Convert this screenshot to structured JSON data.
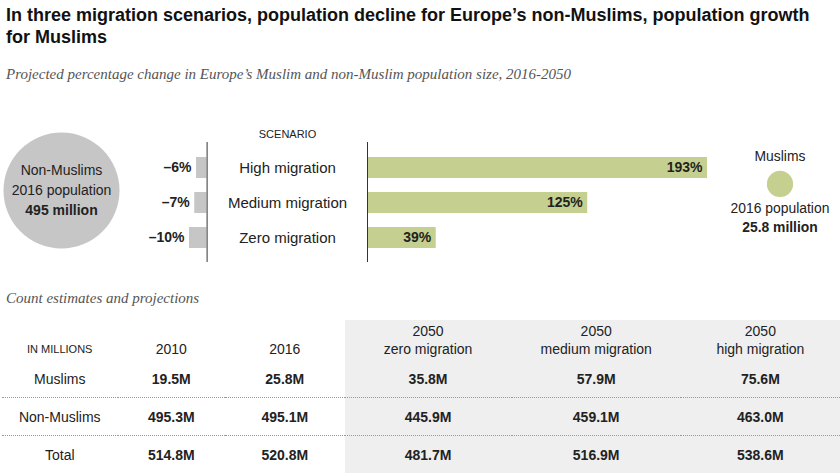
{
  "title": "In three migration scenarios, population decline for Europe’s non-Muslims, population growth for Muslims",
  "subtitle": "Projected percentage change in Europe’s Muslim and non-Muslim population size, 2016-2050",
  "chart_data": [
    {
      "type": "bar",
      "orientation": "horizontal",
      "categories": [
        "High migration",
        "Medium migration",
        "Zero migration"
      ],
      "series": [
        {
          "name": "Non-Muslims",
          "color": "#c6c6c6",
          "values": [
            -6,
            -7,
            -10
          ],
          "value_labels": [
            "–6%",
            "–7%",
            "–10%"
          ],
          "population_label": "2016 population",
          "population": 495,
          "population_value_label": "495 million"
        }
      ],
      "xlim": [
        -10,
        0
      ],
      "tick_labels": false,
      "data_labels": true
    },
    {
      "type": "bar",
      "orientation": "horizontal",
      "ylabel": "SCENARIO",
      "categories": [
        "High migration",
        "Medium migration",
        "Zero migration"
      ],
      "series": [
        {
          "name": "Muslims",
          "color": "#c5cf8f",
          "values": [
            193,
            125,
            39
          ],
          "value_labels": [
            "193%",
            "125%",
            "39%"
          ],
          "population_label": "2016 population",
          "population": 25.8,
          "population_value_label": "25.8 million"
        }
      ],
      "xlim": [
        0,
        193
      ],
      "tick_labels": false,
      "data_labels": true
    }
  ],
  "table": {
    "title": "Count estimates and projections",
    "header": [
      [
        "IN MILLIONS"
      ],
      [
        "2010"
      ],
      [
        "2016"
      ],
      [
        "2050",
        "zero migration"
      ],
      [
        "2050",
        "medium migration"
      ],
      [
        "2050",
        "high migration"
      ]
    ],
    "rows": [
      [
        "Muslims",
        "19.5M",
        "25.8M",
        "35.8M",
        "57.9M",
        "75.6M"
      ],
      [
        "Non-Muslims",
        "495.3M",
        "495.1M",
        "445.9M",
        "459.1M",
        "463.0M"
      ],
      [
        "Total",
        "514.8M",
        "520.8M",
        "481.7M",
        "516.9M",
        "538.6M"
      ]
    ]
  }
}
